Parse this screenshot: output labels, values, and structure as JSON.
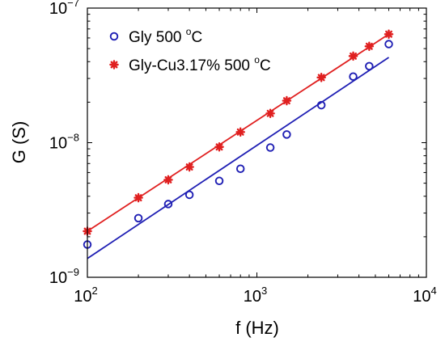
{
  "chart_data": {
    "type": "scatter",
    "xscale": "log",
    "yscale": "log",
    "xlabel": "f (Hz)",
    "ylabel": "G (S)",
    "xlim": [
      100,
      10000
    ],
    "ylim": [
      1e-09,
      1e-07
    ],
    "grid": false,
    "legend_position": "top-left",
    "x_ticks": [
      {
        "base": "10",
        "exp": "2",
        "value": 100
      },
      {
        "base": "10",
        "exp": "3",
        "value": 1000
      },
      {
        "base": "10",
        "exp": "4",
        "value": 10000
      }
    ],
    "y_ticks": [
      {
        "base": "10",
        "exp": "−9",
        "value": 1e-09
      },
      {
        "base": "10",
        "exp": "−8",
        "value": 1e-08
      },
      {
        "base": "10",
        "exp": "−7",
        "value": 1e-07
      }
    ],
    "series": [
      {
        "name_main": "Gly 500 ",
        "name_sup": "o",
        "name_tail": "C",
        "color": "#1f1fb4",
        "marker": "circle",
        "x": [
          100,
          200,
          300,
          400,
          600,
          800,
          1200,
          1500,
          2400,
          3700,
          4600,
          6000
        ],
        "y": [
          1.75e-09,
          2.75e-09,
          3.5e-09,
          4.1e-09,
          5.2e-09,
          6.4e-09,
          9.2e-09,
          1.15e-08,
          1.9e-08,
          3.1e-08,
          3.7e-08,
          5.4e-08
        ],
        "fit": {
          "x": [
            100,
            6000
          ],
          "y": [
            1.38e-09,
            4.3e-08
          ]
        }
      },
      {
        "name_main": "Gly-Cu3.17% 500 ",
        "name_sup": "o",
        "name_tail": "C",
        "color": "#e02020",
        "marker": "star",
        "x": [
          100,
          200,
          300,
          400,
          600,
          800,
          1200,
          1500,
          2400,
          3700,
          4600,
          6000
        ],
        "y": [
          2.2e-09,
          3.9e-09,
          5.3e-09,
          6.6e-09,
          9.3e-09,
          1.2e-08,
          1.65e-08,
          2.05e-08,
          3.05e-08,
          4.4e-08,
          5.2e-08,
          6.4e-08
        ],
        "fit": {
          "x": [
            100,
            6000
          ],
          "y": [
            2.2e-09,
            6.4e-08
          ]
        }
      }
    ]
  }
}
